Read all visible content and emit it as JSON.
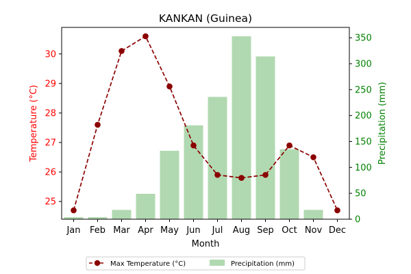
{
  "chart_data": {
    "type": "bar+line",
    "title": "KANKAN (Guinea)",
    "xlabel": "Month",
    "categories": [
      "Jan",
      "Feb",
      "Mar",
      "Apr",
      "May",
      "Jun",
      "Jul",
      "Aug",
      "Sep",
      "Oct",
      "Nov",
      "Dec"
    ],
    "series": [
      {
        "name": "Max Temperature (°C)",
        "type": "line",
        "axis": "left",
        "values": [
          24.7,
          27.6,
          30.1,
          30.6,
          28.9,
          26.9,
          25.9,
          25.8,
          25.9,
          26.9,
          26.5,
          24.7
        ],
        "color": "#8b0000",
        "style": "dashed",
        "marker": "circle"
      },
      {
        "name": "Precipitation (mm)",
        "type": "bar",
        "axis": "right",
        "values": [
          4,
          4,
          18,
          49,
          132,
          181,
          236,
          353,
          314,
          135,
          18,
          0
        ],
        "color": "#b1d9b1"
      }
    ],
    "y_left": {
      "label": "Temperature (°C)",
      "color": "#ff0000",
      "range": [
        24.4,
        30.9
      ],
      "ticks": [
        25,
        26,
        27,
        28,
        29,
        30
      ]
    },
    "y_right": {
      "label": "Precipitation (mm)",
      "color": "#008000",
      "range": [
        0,
        370
      ],
      "ticks": [
        0,
        50,
        100,
        150,
        200,
        250,
        300,
        350
      ]
    },
    "grid": false,
    "legend_position": "bottom-center"
  }
}
